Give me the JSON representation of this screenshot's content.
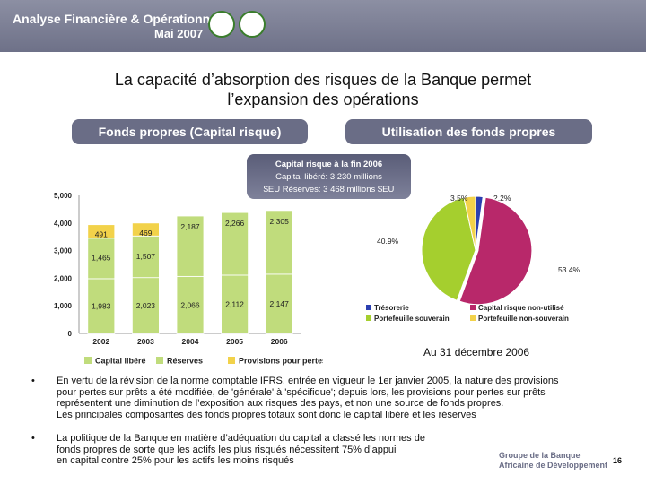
{
  "header": {
    "line1": "Analyse Financière & Opérationnelle",
    "line2": "Mai 2007"
  },
  "title": {
    "line1": "La capacité d’absorption des risques de la Banque permet",
    "line2": "l’expansion des opérations"
  },
  "pills": {
    "left": "Fonds propres (Capital risque)",
    "right": "Utilisation des fonds propres"
  },
  "callout": {
    "heading": "Capital risque à la fin 2006",
    "line1": "Capital libéré: 3 230 millions",
    "line2": "$EU Réserves: 3 468 millions $EU"
  },
  "bar_chart": {
    "type": "bar",
    "categories": [
      "2002",
      "2003",
      "2004",
      "2005",
      "2006"
    ],
    "yticks": [
      "0",
      "1,000",
      "2,000",
      "3,000",
      "4,000",
      "5,000"
    ],
    "ylim": [
      0,
      5000
    ],
    "series": [
      {
        "name": "Capital libéré",
        "color": "#c0dc7c",
        "values": [
          1983,
          2023,
          2066,
          2112,
          2147
        ],
        "labels": [
          "1,983",
          "2,023",
          "2,066",
          "2,112",
          "2,147"
        ]
      },
      {
        "name": "Réserves",
        "color": "#c0dc7c",
        "values": [
          1465,
          1507,
          2187,
          2266,
          2305
        ],
        "labels": [
          "1,465",
          "1,507",
          "2,187",
          "2,266",
          "2,305"
        ]
      },
      {
        "name": "Provisions pour pertes",
        "color": "#f2d24a",
        "values": [
          491,
          469,
          null,
          null,
          null
        ],
        "labels": [
          "491",
          "469",
          "",
          "",
          ""
        ]
      }
    ]
  },
  "chart_data": {
    "type": "pie",
    "categories": [
      "Trésorerie",
      "Capital risque non-utilisé",
      "Portefeuille souverain",
      "Portefeuille non-souverain"
    ],
    "values": [
      2.2,
      53.4,
      40.9,
      3.5
    ],
    "labels": [
      "2.2%",
      "53.4%",
      "40.9%",
      "3.5%"
    ],
    "colors": [
      "#2b3fb0",
      "#b8286a",
      "#a5cf2e",
      "#f2d24a"
    ],
    "title": "Au 31 décembre 2006"
  },
  "date_label": "Au 31 décembre 2006",
  "bullets": [
    {
      "marker": "•",
      "lines": [
        "En vertu de la révision de la norme comptable IFRS, entrée en vigueur le 1er janvier 2005, la nature des provisions",
        "pour pertes sur prêts a été modifiée, de 'générale' à 'spécifique'; depuis lors, les provisions pour pertes sur prêts",
        "représentent une diminution de l’exposition aux risques des pays, et non une source de fonds propres.",
        "Les principales composantes des fonds propres totaux sont donc le capital libéré et les réserves"
      ]
    },
    {
      "marker": "•",
      "lines": [
        "La politique de la Banque en matière d’adéquation du capital a classé les normes de",
        "fonds propres de sorte que les actifs les plus risqués nécessitent 75% d’appui",
        "en capital contre 25% pour les actifs les moins risqués"
      ]
    }
  ],
  "footer": {
    "org_line1": "Groupe de la Banque",
    "org_line2": "Africaine de Développement",
    "page": "16"
  }
}
